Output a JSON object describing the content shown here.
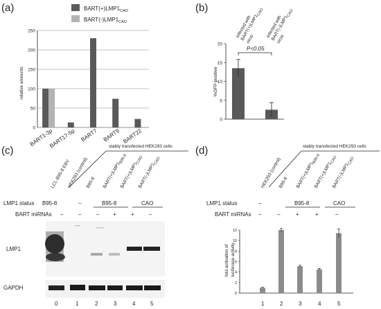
{
  "panels": {
    "a": {
      "label": "(a)"
    },
    "b": {
      "label": "(b)"
    },
    "c": {
      "label": "(c)"
    },
    "d": {
      "label": "(d)"
    }
  },
  "chart_data": [
    {
      "type": "bar",
      "panel": "a",
      "ylabel": "relative amounts",
      "ylim": [
        0,
        250
      ],
      "yticks": [
        "0",
        "50",
        "100",
        "150",
        "200",
        "250"
      ],
      "grid": true,
      "categories": [
        "BART1-3p",
        "BART17-5p",
        "BART7",
        "BART9",
        "BART22"
      ],
      "series": [
        {
          "name": "BART(+)LMP1",
          "name_sub": "CAO",
          "color": "#595959",
          "values": [
            100,
            13,
            230,
            74,
            22
          ]
        },
        {
          "name": "BART(-)LMP1",
          "name_sub": "CAO",
          "color": "#b3b3b3",
          "values": [
            100,
            null,
            null,
            null,
            null
          ]
        }
      ],
      "legend_position": "top-right"
    },
    {
      "type": "bar",
      "panel": "b",
      "ylabel": "%GFP-positive",
      "ylim": [
        0,
        20
      ],
      "yticks": [
        "0",
        "5",
        "10",
        "15",
        "20"
      ],
      "categories": [
        "BART(+)LMP1 CAO virus",
        "BART(-)LMP1 CAO virus"
      ],
      "category_lines": [
        [
          "infected with",
          "BART(+)LMP1",
          "virus"
        ],
        [
          "infected with",
          "BART(-)LMP1",
          "virus"
        ]
      ],
      "category_sub": "CAO",
      "values": [
        13.5,
        2.5
      ],
      "errors": [
        2.3,
        1.9
      ],
      "color": "#595959",
      "annotation": "P<0.05"
    },
    {
      "type": "bar",
      "panel": "d",
      "ylabel_lines": [
        "fold activation of",
        "luciferase activity"
      ],
      "ylim": [
        0,
        12
      ],
      "yticks": [
        "0",
        "2",
        "4",
        "6",
        "8",
        "10",
        "12"
      ],
      "categories": [
        "1",
        "2",
        "3",
        "4",
        "5"
      ],
      "values": [
        1.0,
        12.0,
        5.1,
        4.5,
        11.4
      ],
      "errors": [
        0.1,
        0.3,
        0.2,
        0.2,
        0.8
      ],
      "color": "#8c8c8c"
    }
  ],
  "blot": {
    "header": "stably transfected HEK293 cells",
    "lane_labels": [
      {
        "main": "LCL-B95-8 EBV",
        "sub": ""
      },
      {
        "main": "HEK293 (control)",
        "sub": ""
      },
      {
        "main": "B95-8",
        "sub": ""
      },
      {
        "main": "BART(+)LMP1",
        "sub": "B95-8"
      },
      {
        "main": "BART(+)LMP1",
        "sub": "CAO"
      },
      {
        "main": "BART(-)LMP1",
        "sub": "CAO"
      }
    ],
    "lmp1_status_label": "LMP1 status",
    "lmp1_status_values": {
      "b95": "B95-8",
      "dash": "–",
      "group_b95": "B95-8",
      "group_cao": "CAO"
    },
    "mirna_label": "BART miRNAs",
    "mirna_values": [
      "–",
      "–",
      "–",
      "+",
      "+",
      "–"
    ],
    "bands": [
      "LMP1",
      "GAPDH"
    ],
    "lane_numbers": [
      "0",
      "1",
      "2",
      "3",
      "4",
      "5"
    ]
  },
  "panel_d_table": {
    "header": "stably transfected HEK293 cells",
    "lane_labels": [
      {
        "main": "HEK293 (control)",
        "sub": ""
      },
      {
        "main": "B95-8",
        "sub": ""
      },
      {
        "main": "BART(+)LMP1",
        "sub": "B95-8"
      },
      {
        "main": "BART(+)LMP1",
        "sub": "CAO"
      },
      {
        "main": "BART(-)LMP1",
        "sub": "CAO"
      }
    ],
    "lmp1_status_label": "LMP1 status",
    "group_b95": "B95-8",
    "group_cao": "CAO",
    "dash": "–",
    "mirna_label": "BART miRNAs",
    "mirna_values": [
      "–",
      "–",
      "+",
      "+",
      "–"
    ]
  }
}
